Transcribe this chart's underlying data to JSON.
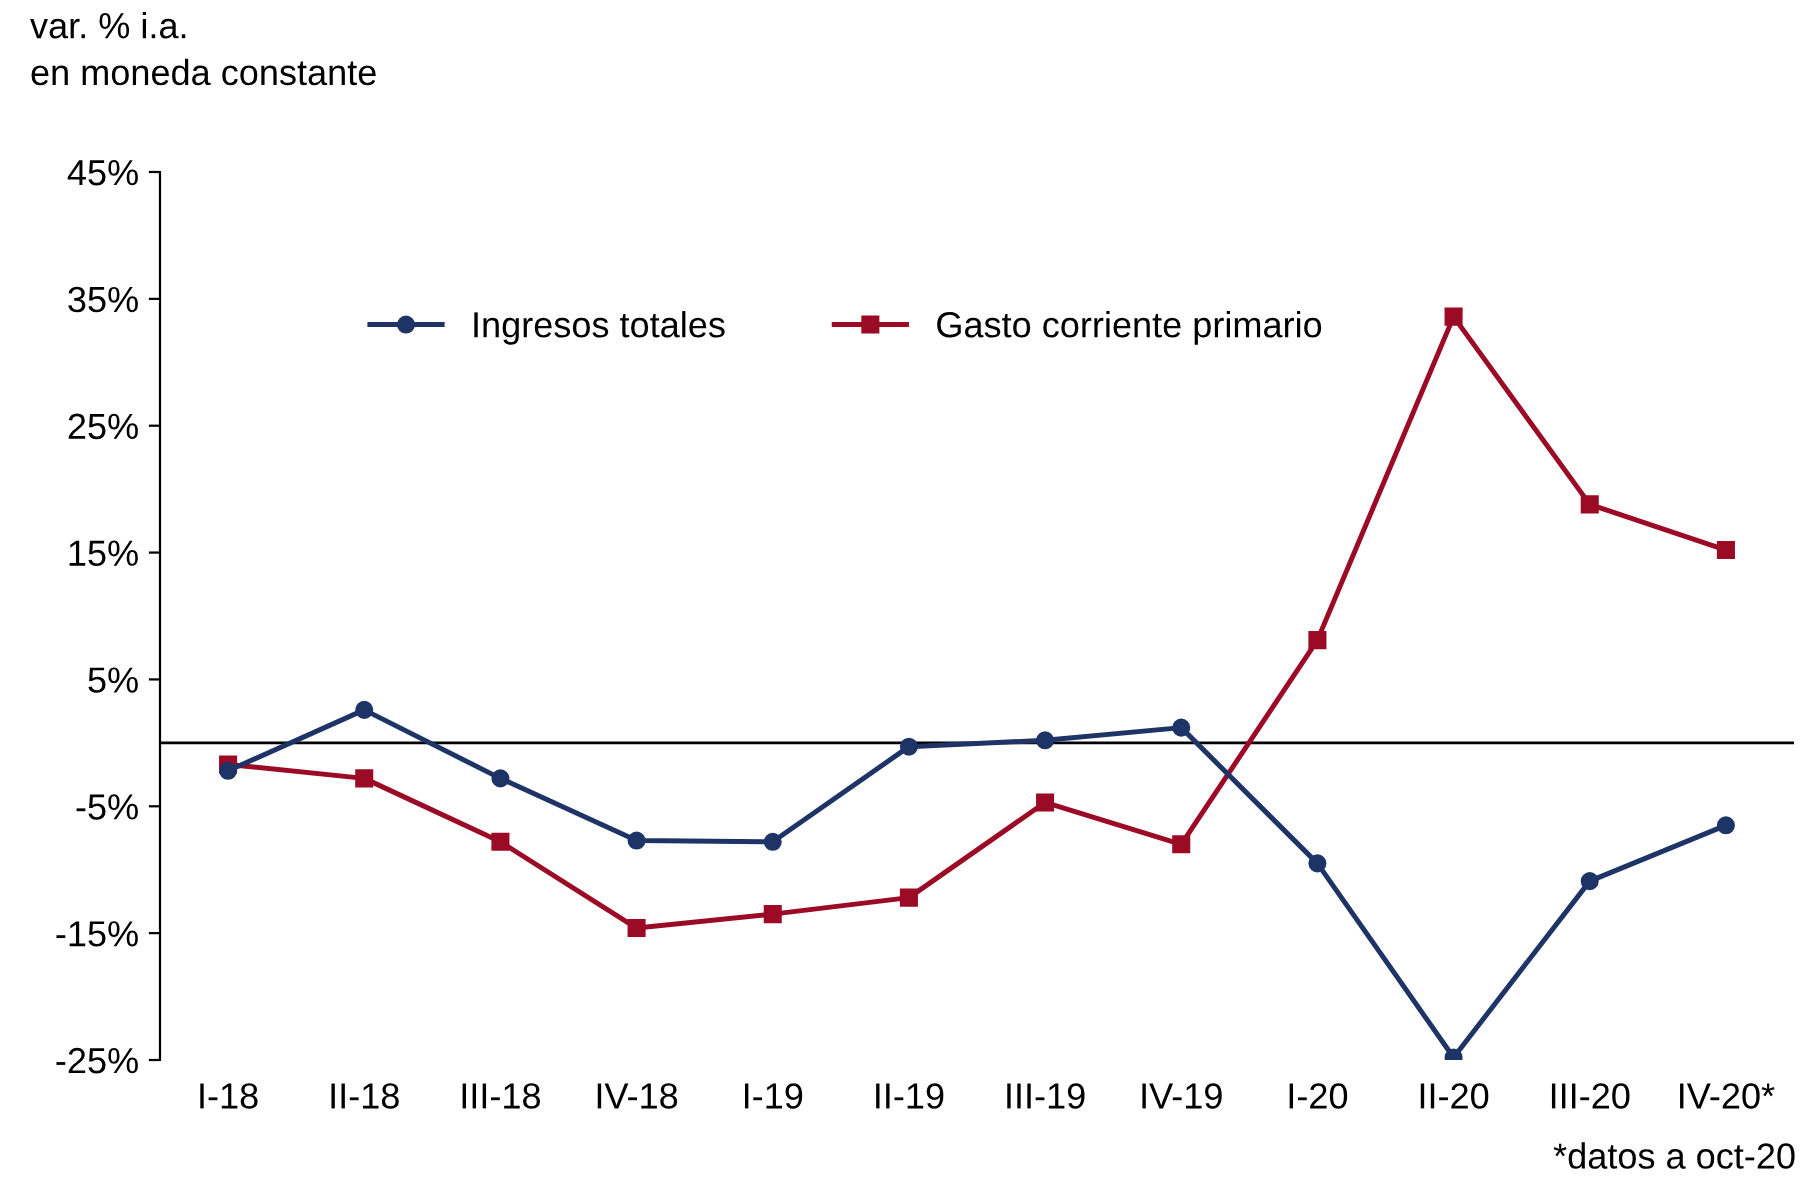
{
  "chart_data": {
    "type": "line",
    "ylabel": "var. % i.a.\nen moneda constante",
    "categories": [
      "I-18",
      "II-18",
      "III-18",
      "IV-18",
      "I-19",
      "II-19",
      "III-19",
      "IV-19",
      "I-20",
      "II-20",
      "III-20",
      "IV-20*"
    ],
    "series": [
      {
        "name": "Ingresos totales",
        "color": "#1f3466",
        "marker": "circle",
        "values": [
          -2.2,
          2.6,
          -2.8,
          -7.7,
          -7.8,
          -0.3,
          0.2,
          1.2,
          -9.5,
          -24.8,
          -10.9,
          -6.5
        ]
      },
      {
        "name": "Gasto corriente primario",
        "color": "#9b0b25",
        "marker": "square",
        "values": [
          -1.7,
          -2.8,
          -7.8,
          -14.6,
          -13.5,
          -12.2,
          -4.7,
          -8.0,
          8.1,
          33.6,
          18.8,
          15.2
        ]
      }
    ],
    "ylim": [
      -25,
      45
    ],
    "yticks": [
      {
        "value": -25,
        "label": "-25%"
      },
      {
        "value": -15,
        "label": "-15%"
      },
      {
        "value": -5,
        "label": "-5%"
      },
      {
        "value": 5,
        "label": "5%"
      },
      {
        "value": 15,
        "label": "15%"
      },
      {
        "value": 25,
        "label": "25%"
      },
      {
        "value": 35,
        "label": "35%"
      },
      {
        "value": 45,
        "label": "45%"
      }
    ],
    "legend": "top",
    "grid": false,
    "annotations": [
      "*datos a oct-20"
    ]
  }
}
